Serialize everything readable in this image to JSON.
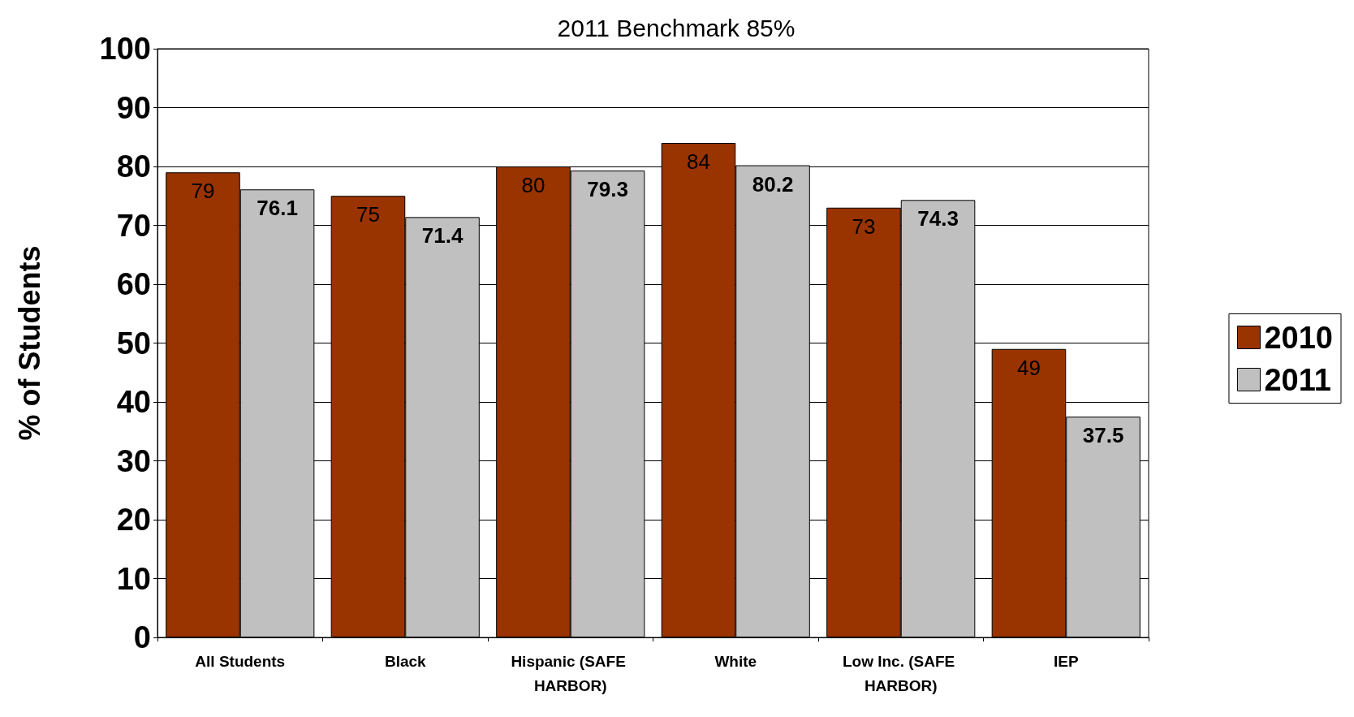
{
  "chart_data": {
    "type": "bar",
    "title": "2011 Benchmark 85%",
    "ylabel": "% of Students",
    "categories": [
      "All Students",
      "Black",
      "Hispanic (SAFE HARBOR)",
      "White",
      "Low Inc. (SAFE HARBOR)",
      "IEP"
    ],
    "series": [
      {
        "name": "2010",
        "color": "#993300",
        "values": [
          79,
          75,
          80,
          84,
          73,
          49
        ]
      },
      {
        "name": "2011",
        "color": "#c0c0c0",
        "values": [
          76.1,
          71.4,
          79.3,
          80.2,
          74.3,
          37.5
        ]
      }
    ],
    "ylim": [
      0,
      100
    ],
    "yticks": [
      0,
      10,
      20,
      30,
      40,
      50,
      60,
      70,
      80,
      90,
      100
    ],
    "grid": "y",
    "legend": "right",
    "data_labels": true
  }
}
